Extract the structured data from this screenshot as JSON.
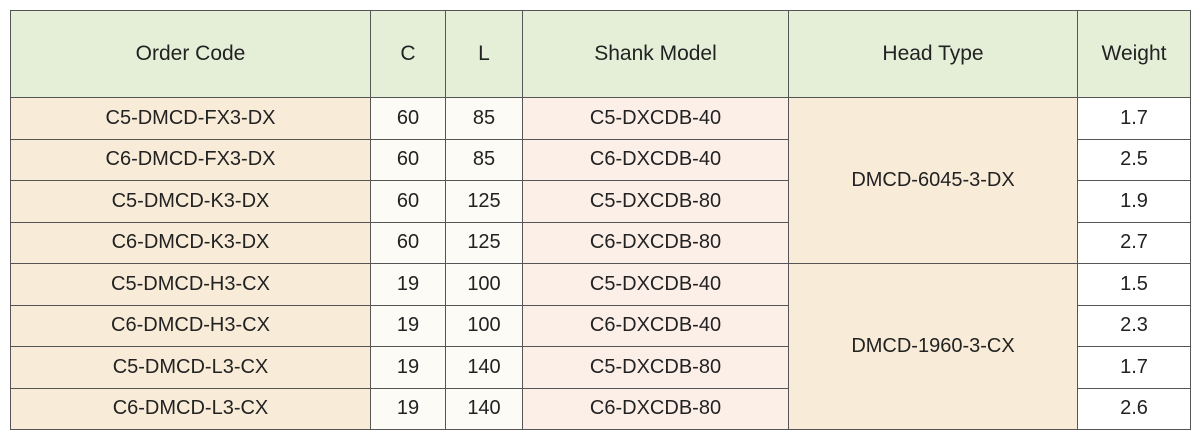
{
  "table": {
    "header": [
      "Order Code",
      "C",
      "L",
      "Shank Model",
      "Head Type",
      "Weight"
    ],
    "rows": [
      [
        "C5-DMCD-FX3-DX",
        60,
        85,
        "C5-DXCDB-40",
        1.7
      ],
      [
        "C6-DMCD-FX3-DX",
        60,
        85,
        "C6-DXCDB-40",
        2.5
      ],
      [
        "C5-DMCD-K3-DX",
        60,
        125,
        "C5-DXCDB-80",
        1.9
      ],
      [
        "C6-DMCD-K3-DX",
        60,
        125,
        "C6-DXCDB-80",
        2.7
      ],
      [
        "C5-DMCD-H3-CX",
        19,
        100,
        "C5-DXCDB-40",
        1.5
      ],
      [
        "C6-DMCD-H3-CX",
        19,
        100,
        "C6-DXCDB-40",
        2.3
      ],
      [
        "C5-DMCD-L3-CX",
        19,
        140,
        "C5-DXCDB-80",
        1.7
      ],
      [
        "C6-DMCD-L3-CX",
        19,
        140,
        "C6-DXCDB-80",
        2.6
      ]
    ],
    "head_types": [
      "DMCD-6045-3-DX",
      "DMCD-1960-3-CX"
    ]
  }
}
